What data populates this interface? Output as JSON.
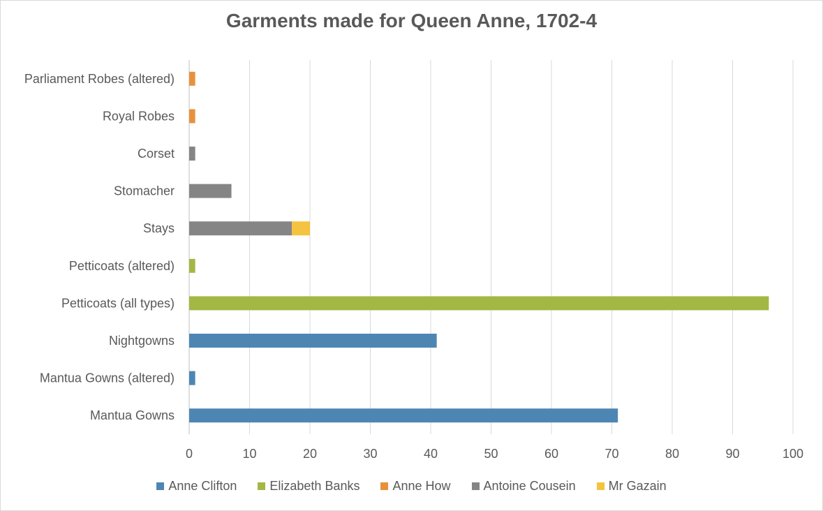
{
  "chart_data": {
    "type": "bar",
    "orientation": "horizontal",
    "stacked": true,
    "title": "Garments made for Queen Anne, 1702-4",
    "xlabel": "",
    "ylabel": "",
    "xlim": [
      0,
      100
    ],
    "x_ticks": [
      "0",
      "10",
      "20",
      "30",
      "40",
      "50",
      "60",
      "70",
      "80",
      "90",
      "100"
    ],
    "gridlines": "vertical",
    "legend_position": "bottom",
    "categories": [
      "Parliament Robes (altered)",
      "Royal Robes",
      "Corset",
      "Stomacher",
      "Stays",
      "Petticoats (altered)",
      "Petticoats (all types)",
      "Nightgowns",
      "Mantua Gowns (altered)",
      "Mantua Gowns"
    ],
    "series": [
      {
        "name": "Anne Clifton",
        "color": "#4e86b3",
        "values": [
          0,
          0,
          0,
          0,
          0,
          0,
          0,
          41,
          1,
          71
        ]
      },
      {
        "name": "Elizabeth Banks",
        "color": "#a3b744",
        "values": [
          0,
          0,
          0,
          0,
          0,
          1,
          96,
          0,
          0,
          0
        ]
      },
      {
        "name": "Anne How",
        "color": "#e8913c",
        "values": [
          1,
          1,
          0,
          0,
          0,
          0,
          0,
          0,
          0,
          0
        ]
      },
      {
        "name": "Antoine Cousein",
        "color": "#858585",
        "values": [
          0,
          0,
          1,
          7,
          17,
          0,
          0,
          0,
          0,
          0
        ]
      },
      {
        "name": "Mr Gazain",
        "color": "#f4c33f",
        "values": [
          0,
          0,
          0,
          0,
          3,
          0,
          0,
          0,
          0,
          0
        ]
      }
    ]
  }
}
